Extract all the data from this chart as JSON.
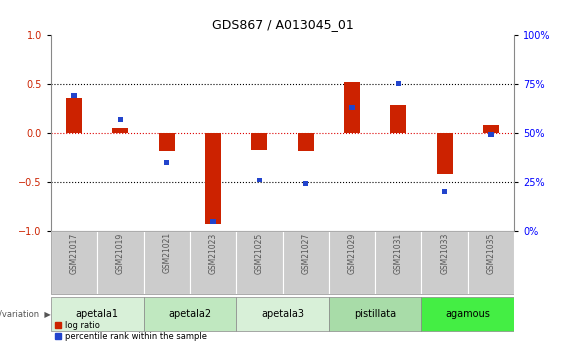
{
  "title": "GDS867 / A013045_01",
  "samples": [
    "GSM21017",
    "GSM21019",
    "GSM21021",
    "GSM21023",
    "GSM21025",
    "GSM21027",
    "GSM21029",
    "GSM21031",
    "GSM21033",
    "GSM21035"
  ],
  "log_ratio": [
    0.35,
    0.05,
    -0.18,
    -0.93,
    -0.17,
    -0.18,
    0.52,
    0.28,
    -0.42,
    0.08
  ],
  "percentile_rank": [
    69,
    57,
    35,
    5,
    26,
    24,
    63,
    75,
    20,
    49
  ],
  "groups": [
    {
      "label": "apetala1",
      "samples": [
        0,
        1
      ],
      "color": "#d8f0d8"
    },
    {
      "label": "apetala2",
      "samples": [
        2,
        3
      ],
      "color": "#c0e8c0"
    },
    {
      "label": "apetala3",
      "samples": [
        4,
        5
      ],
      "color": "#d8f0d8"
    },
    {
      "label": "pistillata",
      "samples": [
        6,
        7
      ],
      "color": "#a8dca8"
    },
    {
      "label": "agamous",
      "samples": [
        8,
        9
      ],
      "color": "#44ee44"
    }
  ],
  "ylim_left": [
    -1,
    1
  ],
  "ylim_right": [
    0,
    100
  ],
  "yticks_left": [
    -1,
    -0.5,
    0,
    0.5,
    1
  ],
  "yticks_right": [
    0,
    25,
    50,
    75,
    100
  ],
  "yticklabels_right": [
    "0%",
    "25%",
    "50%",
    "75%",
    "100%"
  ],
  "bar_color_red": "#cc2200",
  "bar_color_blue": "#2244cc",
  "zero_line_color": "#dd0000",
  "sample_box_color": "#cccccc",
  "sample_text_color": "#555555",
  "bar_width": 0.35,
  "blue_bar_width": 0.12
}
